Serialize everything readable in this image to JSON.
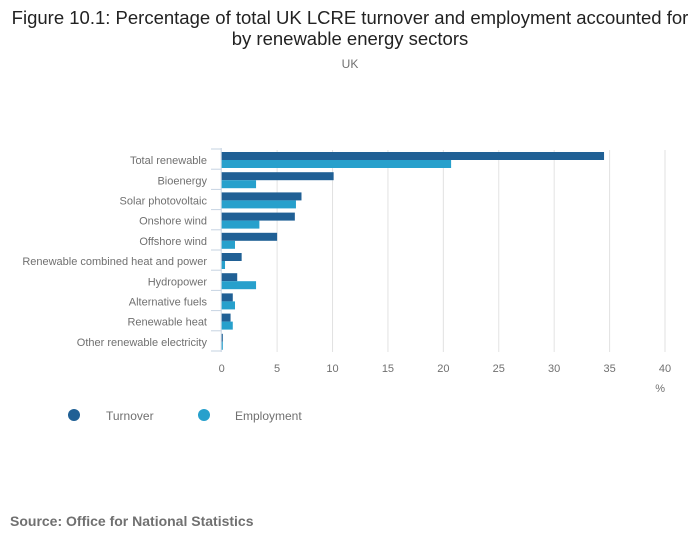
{
  "chart_data": {
    "type": "bar",
    "orientation": "horizontal",
    "title": "Figure 10.1: Percentage of total UK LCRE turnover and employment accounted for by renewable energy sectors",
    "subtitle": "UK",
    "xlabel": "%",
    "ylabel": "",
    "xlim": [
      0,
      40
    ],
    "xticks": [
      0,
      5,
      10,
      15,
      20,
      25,
      30,
      35,
      40
    ],
    "grid": true,
    "legend": "bottom-left",
    "categories": [
      "Total renewable",
      "Bioenergy",
      "Solar photovoltaic",
      "Onshore wind",
      "Offshore wind",
      "Renewable combined heat and power",
      "Hydropower",
      "Alternative fuels",
      "Renewable heat",
      "Other renewable electricity"
    ],
    "series": [
      {
        "name": "Turnover",
        "color": "#206095",
        "values": [
          34.5,
          10.1,
          7.2,
          6.6,
          5.0,
          1.8,
          1.4,
          1.0,
          0.8,
          0.1
        ]
      },
      {
        "name": "Employment",
        "color": "#27a0cc",
        "values": [
          20.7,
          3.1,
          6.7,
          3.4,
          1.2,
          0.3,
          3.1,
          1.2,
          1.0,
          0.1
        ]
      }
    ]
  },
  "source": "Source: Office for National Statistics"
}
